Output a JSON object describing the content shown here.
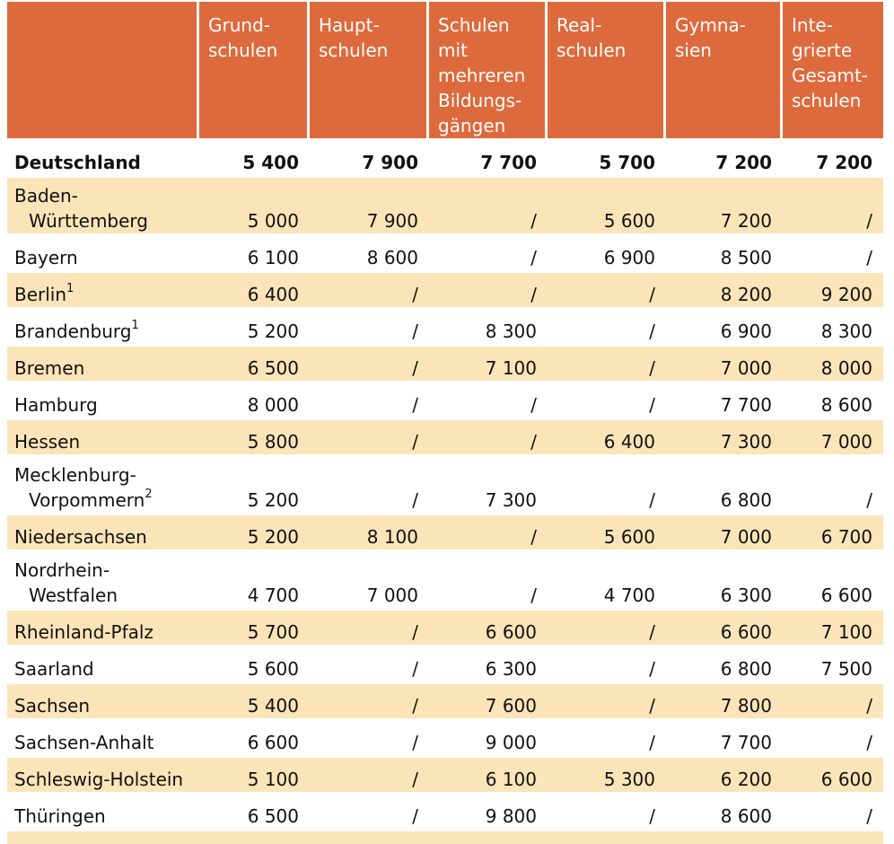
{
  "columns": [
    "",
    "Grund-\nschulen",
    "Haupt-\nschulen",
    "Schulen\nmit\nmehreren\nBildungs-\ngängen",
    "Real-\nschulen",
    "Gymna-\nsien",
    "Inte-\ngrierte\nGesamt-\nschulen"
  ],
  "rows": [
    {
      "line1": "Deutschland",
      "line2": "",
      "sup": "",
      "values": [
        "5 400",
        "7 900",
        "7 700",
        "5 700",
        "7 200",
        "7 200"
      ]
    },
    {
      "line1": "Baden-",
      "line2": "Württemberg",
      "sup": "",
      "values": [
        "5 000",
        "7 900",
        "/",
        "5 600",
        "7 200",
        "/"
      ]
    },
    {
      "line1": "Bayern",
      "line2": "",
      "sup": "",
      "values": [
        "6 100",
        "8 600",
        "/",
        "6 900",
        "8 500",
        "/"
      ]
    },
    {
      "line1": "Berlin",
      "line2": "",
      "sup": "1",
      "values": [
        "6 400",
        "/",
        "/",
        "/",
        "8 200",
        "9 200"
      ]
    },
    {
      "line1": "Brandenburg",
      "line2": "",
      "sup": "1",
      "values": [
        "5 200",
        "/",
        "8 300",
        "/",
        "6 900",
        "8 300"
      ]
    },
    {
      "line1": "Bremen",
      "line2": "",
      "sup": "",
      "values": [
        "6 500",
        "/",
        "7 100",
        "/",
        "7 000",
        "8 000"
      ]
    },
    {
      "line1": "Hamburg",
      "line2": "",
      "sup": "",
      "values": [
        "8 000",
        "/",
        "/",
        "/",
        "7 700",
        "8 600"
      ]
    },
    {
      "line1": "Hessen",
      "line2": "",
      "sup": "",
      "values": [
        "5 800",
        "/",
        "/",
        "6 400",
        "7 300",
        "7 000"
      ]
    },
    {
      "line1": "Mecklenburg-",
      "line2": "Vorpommern",
      "sup": "2",
      "values": [
        "5 200",
        "/",
        "7 300",
        "/",
        "6 800",
        "/"
      ]
    },
    {
      "line1": "Niedersachsen",
      "line2": "",
      "sup": "",
      "values": [
        "5 200",
        "8 100",
        "/",
        "5 600",
        "7 000",
        "6 700"
      ]
    },
    {
      "line1": "Nordrhein-",
      "line2": "Westfalen",
      "sup": "",
      "values": [
        "4 700",
        "7 000",
        "/",
        "4 700",
        "6 300",
        "6 600"
      ]
    },
    {
      "line1": "Rheinland-Pfalz",
      "line2": "",
      "sup": "",
      "values": [
        "5 700",
        "/",
        "6 600",
        "/",
        "6 600",
        "7 100"
      ]
    },
    {
      "line1": "Saarland",
      "line2": "",
      "sup": "",
      "values": [
        "5 600",
        "/",
        "6 300",
        "/",
        "6 800",
        "7 500"
      ]
    },
    {
      "line1": "Sachsen",
      "line2": "",
      "sup": "",
      "values": [
        "5 400",
        "/",
        "7 600",
        "/",
        "7 800",
        "/"
      ]
    },
    {
      "line1": "Sachsen-Anhalt",
      "line2": "",
      "sup": "",
      "values": [
        "6 600",
        "/",
        "9 000",
        "/",
        "7 700",
        "/"
      ]
    },
    {
      "line1": "Schleswig-Holstein",
      "line2": "",
      "sup": "",
      "values": [
        "5 100",
        "/",
        "6 100",
        "5 300",
        "6 200",
        "6 600"
      ]
    },
    {
      "line1": "Thüringen",
      "line2": "",
      "sup": "",
      "values": [
        "6 500",
        "/",
        "9 800",
        "/",
        "8 600",
        "/"
      ]
    }
  ],
  "colors": {
    "header": "#dd6a3c",
    "shade": "#fbe4b8"
  }
}
